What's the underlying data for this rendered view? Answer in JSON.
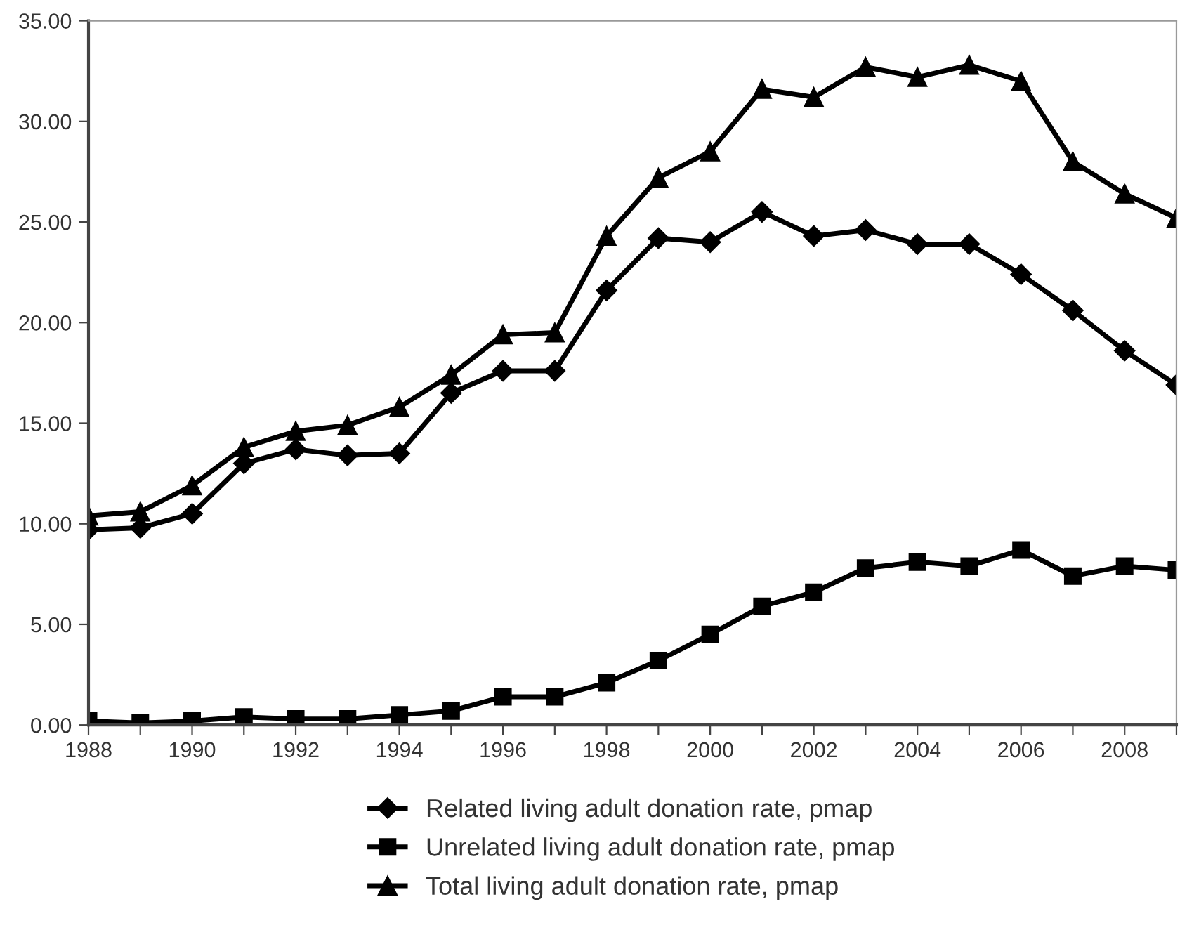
{
  "chart_data": {
    "type": "line",
    "x": [
      1988,
      1989,
      1990,
      1991,
      1992,
      1993,
      1994,
      1995,
      1996,
      1997,
      1998,
      1999,
      2000,
      2001,
      2002,
      2003,
      2004,
      2005,
      2006,
      2007,
      2008,
      2009
    ],
    "series": [
      {
        "name": "Related living adult donation rate, pmap",
        "color": "#000000",
        "marker": "diamond",
        "values": [
          9.7,
          9.8,
          10.5,
          13.0,
          13.7,
          13.4,
          13.5,
          16.5,
          17.6,
          17.6,
          21.6,
          24.2,
          24.0,
          25.5,
          24.3,
          24.6,
          23.9,
          23.9,
          22.4,
          20.6,
          18.6,
          16.9
        ]
      },
      {
        "name": "Unrelated living adult donation rate, pmap",
        "color": "#000000",
        "marker": "square",
        "values": [
          0.2,
          0.1,
          0.2,
          0.4,
          0.3,
          0.3,
          0.5,
          0.7,
          1.4,
          1.4,
          2.1,
          3.2,
          4.5,
          5.9,
          6.6,
          7.8,
          8.1,
          7.9,
          8.7,
          7.4,
          7.9,
          7.7
        ]
      },
      {
        "name": "Total living adult donation rate, pmap",
        "color": "#000000",
        "marker": "triangle",
        "values": [
          10.4,
          10.6,
          11.9,
          13.8,
          14.6,
          14.9,
          15.8,
          17.4,
          19.4,
          19.5,
          24.3,
          27.2,
          28.5,
          31.6,
          31.2,
          32.7,
          32.2,
          32.8,
          32.0,
          28.0,
          26.4,
          25.2
        ]
      }
    ],
    "xlim": [
      1988,
      2009
    ],
    "xticks": [
      1988,
      {
        "value": 1989,
        "label": null
      },
      1990,
      {
        "value": 1991,
        "label": null
      },
      1992,
      {
        "value": 1993,
        "label": null
      },
      1994,
      {
        "value": 1995,
        "label": null
      },
      1996,
      {
        "value": 1997,
        "label": null
      },
      1998,
      {
        "value": 1999,
        "label": null
      },
      2000,
      {
        "value": 2001,
        "label": null
      },
      2002,
      {
        "value": 2003,
        "label": null
      },
      2004,
      {
        "value": 2005,
        "label": null
      },
      2006,
      {
        "value": 2007,
        "label": null
      },
      2008,
      {
        "value": 2009,
        "label": null
      }
    ],
    "ylim": [
      0,
      35
    ],
    "yticks": [
      {
        "value": 0,
        "label": "0.00"
      },
      {
        "value": 5,
        "label": "5.00"
      },
      {
        "value": 10,
        "label": "10.00"
      },
      {
        "value": 15,
        "label": "15.00"
      },
      {
        "value": 20,
        "label": "20.00"
      },
      {
        "value": 25,
        "label": "25.00"
      },
      {
        "value": 30,
        "label": "30.00"
      },
      {
        "value": 35,
        "label": "35.00"
      }
    ],
    "grid": false,
    "legend": "bottom",
    "line_style": "solid"
  }
}
